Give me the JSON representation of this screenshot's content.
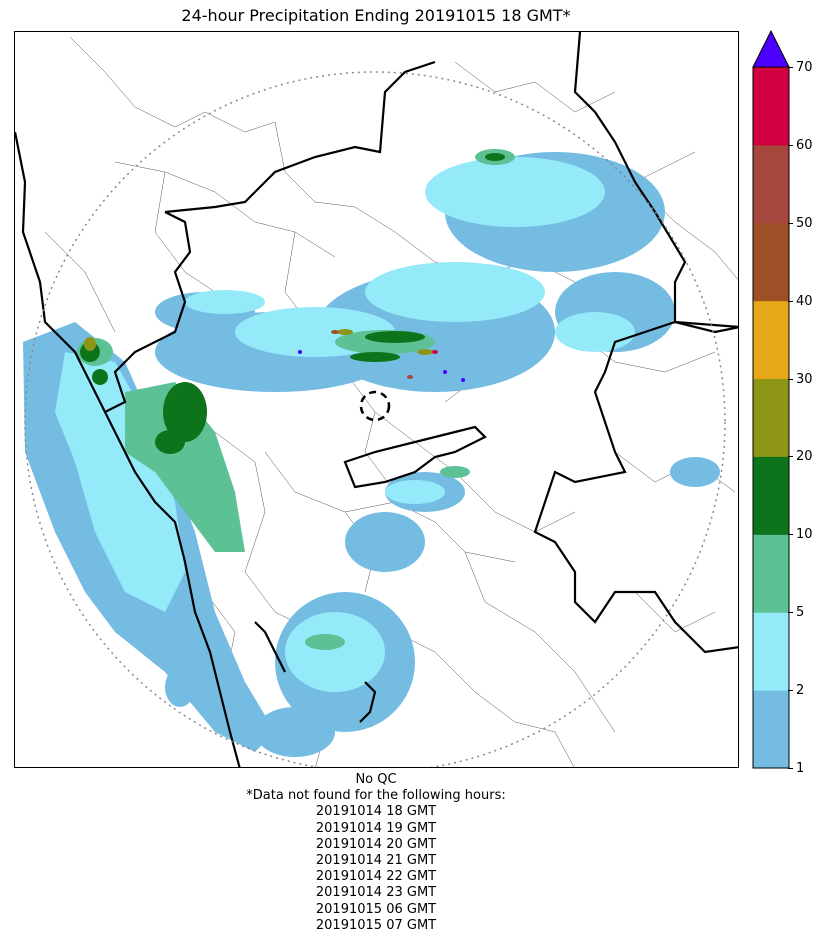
{
  "title": "24-hour Precipitation Ending 20191015 18 GMT*",
  "colorbar": {
    "ticks": [
      "1",
      "2",
      "5",
      "10",
      "20",
      "30",
      "40",
      "50",
      "60",
      "70"
    ],
    "colors": [
      "#74bce2",
      "#95eafa",
      "#5cc296",
      "#0e741b",
      "#8c9516",
      "#e6a718",
      "#9d5026",
      "#a6473e",
      "#d30041"
    ],
    "extend_color": "#4c00ff"
  },
  "footer": {
    "qc_label": "No QC",
    "missing_heading": "*Data not found for the following hours:",
    "missing_hours": [
      "20191014 18 GMT",
      "20191014 19 GMT",
      "20191014 20 GMT",
      "20191014 21 GMT",
      "20191014 22 GMT",
      "20191014 23 GMT",
      "20191015 06 GMT",
      "20191015 07 GMT"
    ]
  }
}
